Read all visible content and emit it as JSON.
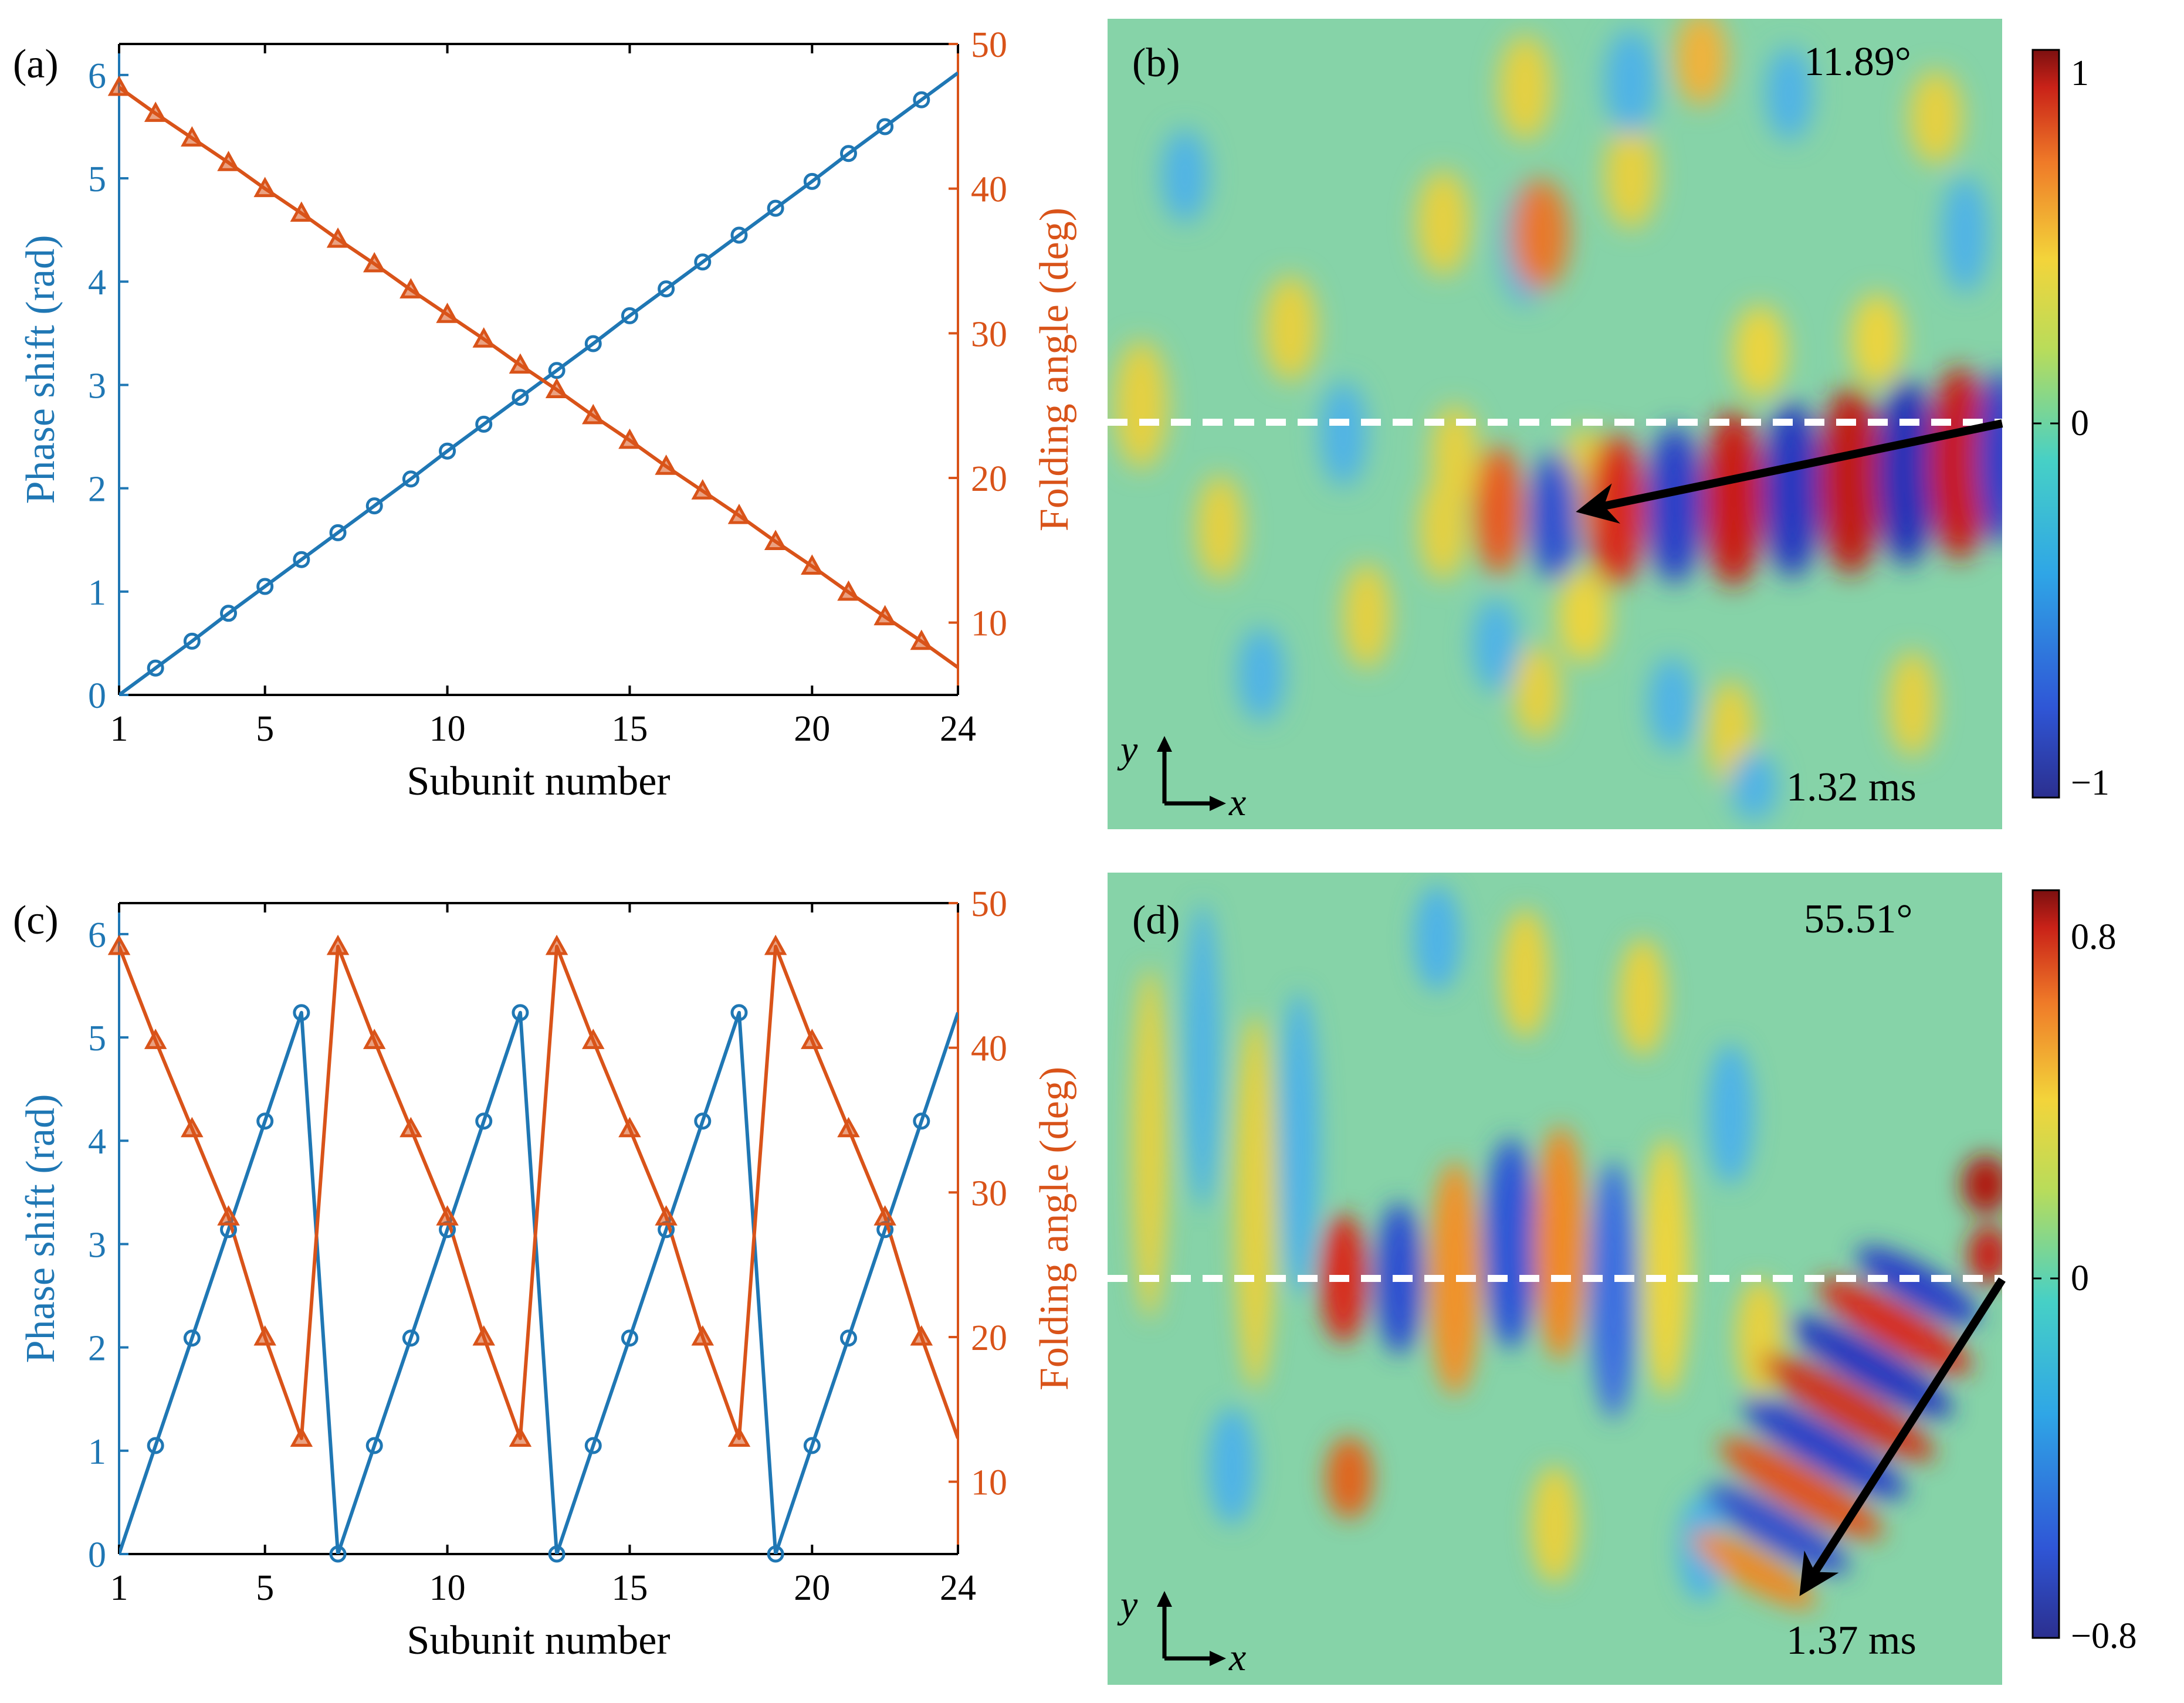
{
  "colors": {
    "phase": "#1f77b4",
    "angle": "#d95319",
    "axis": "#000000",
    "dash": "#ffffff",
    "arrow": "#000000"
  },
  "panels": {
    "a": {
      "label": "(a)"
    },
    "b": {
      "label": "(b)",
      "angle": "11.89°",
      "time": "1.32 ms",
      "colorbar": {
        "top": "1",
        "mid": "0",
        "bottom": "−1"
      },
      "axes": {
        "y": "y",
        "x": "x"
      }
    },
    "c": {
      "label": "(c)"
    },
    "d": {
      "label": "(d)",
      "angle": "55.51°",
      "time": "1.37 ms",
      "colorbar": {
        "top": "0.8",
        "mid": "0",
        "bottom": "−0.8"
      },
      "axes": {
        "y": "y",
        "x": "x"
      }
    }
  },
  "chart_data": [
    {
      "id": "a",
      "type": "line",
      "xlabel": "Subunit number",
      "ylabel_left": "Phase shift (rad)",
      "ylabel_right": "Folding angle (deg)",
      "xlim": [
        1,
        24
      ],
      "xticks": [
        "1",
        "5",
        "10",
        "15",
        "20",
        "24"
      ],
      "ylim_left": [
        0,
        6.3
      ],
      "yticks_left": [
        "0",
        "1",
        "2",
        "3",
        "4",
        "5",
        "6"
      ],
      "ylim_right": [
        5,
        50
      ],
      "yticks_right": [
        "10",
        "20",
        "30",
        "40",
        "50"
      ],
      "x": [
        1,
        2,
        3,
        4,
        5,
        6,
        7,
        8,
        9,
        10,
        11,
        12,
        13,
        14,
        15,
        16,
        17,
        18,
        19,
        20,
        21,
        22,
        23,
        24
      ],
      "series": [
        {
          "name": "Phase shift",
          "axis": "left",
          "marker": "circle",
          "values": [
            0,
            0.26,
            0.52,
            0.79,
            1.05,
            1.31,
            1.57,
            1.83,
            2.09,
            2.36,
            2.62,
            2.88,
            3.14,
            3.4,
            3.67,
            3.93,
            4.19,
            4.45,
            4.71,
            4.97,
            5.24,
            5.5,
            5.76,
            6.02
          ]
        },
        {
          "name": "Folding angle",
          "axis": "right",
          "marker": "triangle",
          "values": [
            47.0,
            45.2,
            43.5,
            41.8,
            40.0,
            38.3,
            36.5,
            34.8,
            33.0,
            31.3,
            29.6,
            27.8,
            26.1,
            24.3,
            22.6,
            20.8,
            19.1,
            17.4,
            15.6,
            13.9,
            12.1,
            10.4,
            8.7,
            6.9
          ]
        }
      ]
    },
    {
      "id": "c",
      "type": "line",
      "xlabel": "Subunit number",
      "ylabel_left": "Phase shift (rad)",
      "ylabel_right": "Folding angle (deg)",
      "xlim": [
        1,
        24
      ],
      "xticks": [
        "1",
        "5",
        "10",
        "15",
        "20",
        "24"
      ],
      "ylim_left": [
        0,
        6.3
      ],
      "yticks_left": [
        "0",
        "1",
        "2",
        "3",
        "4",
        "5",
        "6"
      ],
      "ylim_right": [
        5,
        50
      ],
      "yticks_right": [
        "10",
        "20",
        "30",
        "40",
        "50"
      ],
      "x": [
        1,
        2,
        3,
        4,
        5,
        6,
        7,
        8,
        9,
        10,
        11,
        12,
        13,
        14,
        15,
        16,
        17,
        18,
        19,
        20,
        21,
        22,
        23,
        24
      ],
      "series": [
        {
          "name": "Phase shift",
          "axis": "left",
          "marker": "circle",
          "values": [
            0,
            1.05,
            2.09,
            3.14,
            4.19,
            5.24,
            0,
            1.05,
            2.09,
            3.14,
            4.19,
            5.24,
            0,
            1.05,
            2.09,
            3.14,
            4.19,
            5.24,
            0,
            1.05,
            2.09,
            3.14,
            4.19,
            5.24
          ]
        },
        {
          "name": "Folding angle",
          "axis": "right",
          "marker": "triangle",
          "values": [
            47.0,
            40.5,
            34.4,
            28.3,
            20.0,
            13.0,
            47.0,
            40.5,
            34.4,
            28.3,
            20.0,
            13.0,
            47.0,
            40.5,
            34.4,
            28.3,
            20.0,
            13.0,
            47.0,
            40.5,
            34.4,
            28.3,
            20.0,
            13.0
          ]
        }
      ]
    }
  ]
}
